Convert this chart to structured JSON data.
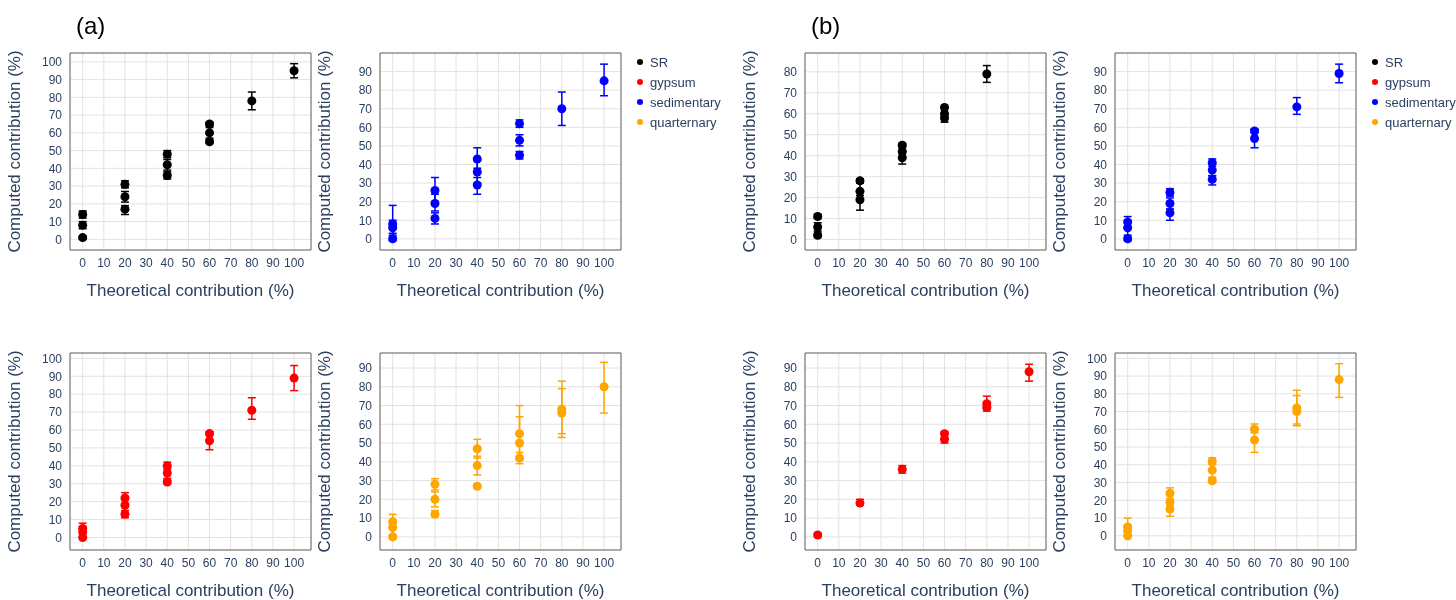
{
  "chart_data": [
    {
      "type": "scatter",
      "annotations": [
        "(a)"
      ],
      "xlabel": "Theoretical contribution (%)",
      "ylabel": "Computed contribution (%)",
      "xlim": [
        -6,
        108
      ],
      "xticks": [
        0,
        10,
        20,
        30,
        40,
        50,
        60,
        70,
        80,
        90,
        100
      ],
      "ylim": [
        -6,
        105
      ],
      "yticks": [
        0,
        10,
        20,
        30,
        40,
        50,
        60,
        70,
        80,
        90,
        100
      ],
      "grid": true,
      "marker": "circle",
      "legend": "right",
      "series": [
        {
          "name": "SR",
          "color": "#000000",
          "x": [
            0,
            0,
            0,
            20,
            20,
            20,
            40,
            40,
            40,
            60,
            60,
            60,
            80,
            100
          ],
          "values": [
            14,
            8,
            1,
            31,
            24,
            17,
            48,
            42,
            36,
            65,
            60,
            55,
            78,
            95
          ],
          "errors": [
            [
              12,
              16
            ],
            [
              6,
              10
            ],
            [
              0,
              2
            ],
            [
              29,
              33
            ],
            [
              21,
              27
            ],
            [
              14,
              19
            ],
            [
              46,
              50
            ],
            [
              39,
              45
            ],
            [
              34,
              38
            ],
            [
              64,
              66
            ],
            [
              57,
              63
            ],
            [
              54,
              56
            ],
            [
              73,
              83
            ],
            [
              91,
              99
            ]
          ]
        }
      ]
    },
    {
      "type": "scatter",
      "xlabel": "Theoretical contribution (%)",
      "ylabel": "Computed contribution (%)",
      "xlim": [
        -6,
        108
      ],
      "xticks": [
        0,
        10,
        20,
        30,
        40,
        50,
        60,
        70,
        80,
        90,
        100
      ],
      "ylim": [
        -6,
        100
      ],
      "yticks": [
        0,
        10,
        20,
        30,
        40,
        50,
        60,
        70,
        80,
        90
      ],
      "grid": true,
      "marker": "circle",
      "legend": "right",
      "series": [
        {
          "name": "sedimentary",
          "color": "#0000ff",
          "x": [
            0,
            0,
            0,
            20,
            20,
            20,
            40,
            40,
            40,
            60,
            60,
            60,
            80,
            100
          ],
          "values": [
            8,
            6,
            0,
            26,
            19,
            11,
            43,
            36,
            29,
            62,
            53,
            45,
            70,
            85
          ],
          "errors": [
            [
              3,
              18
            ],
            [
              2,
              10
            ],
            [
              -1,
              1
            ],
            [
              20,
              33
            ],
            [
              15,
              24
            ],
            [
              8,
              14
            ],
            [
              38,
              49
            ],
            [
              30,
              42
            ],
            [
              24,
              33
            ],
            [
              60,
              64
            ],
            [
              50,
              56
            ],
            [
              43,
              47
            ],
            [
              61,
              79
            ],
            [
              77,
              94
            ]
          ]
        }
      ]
    },
    {
      "type": "scatter",
      "annotations": [
        "(b)"
      ],
      "xlabel": "Theoretical contribution (%)",
      "ylabel": "Computed contribution (%)",
      "xlim": [
        -6,
        108
      ],
      "xticks": [
        0,
        10,
        20,
        30,
        40,
        50,
        60,
        70,
        80,
        90,
        100
      ],
      "ylim": [
        -5,
        89
      ],
      "yticks": [
        0,
        10,
        20,
        30,
        40,
        50,
        60,
        70,
        80
      ],
      "grid": true,
      "marker": "circle",
      "legend": "right",
      "series": [
        {
          "name": "SR",
          "color": "#000000",
          "x": [
            0,
            0,
            0,
            20,
            20,
            20,
            40,
            40,
            40,
            60,
            60,
            60,
            80
          ],
          "values": [
            11,
            6,
            2,
            28,
            23,
            19,
            45,
            42,
            39,
            63,
            60,
            58,
            79
          ],
          "errors": [
            [
              10,
              12
            ],
            [
              4,
              8
            ],
            [
              1,
              3
            ],
            [
              27,
              29
            ],
            [
              19,
              27
            ],
            [
              14,
              21
            ],
            [
              44,
              46
            ],
            [
              39,
              45
            ],
            [
              36,
              41
            ],
            null,
            [
              56,
              63
            ],
            null,
            [
              75,
              83
            ]
          ]
        }
      ]
    },
    {
      "type": "scatter",
      "xlabel": "Theoretical contribution (%)",
      "ylabel": "Computed contribution (%)",
      "xlim": [
        -6,
        108
      ],
      "xticks": [
        0,
        10,
        20,
        30,
        40,
        50,
        60,
        70,
        80,
        90,
        100
      ],
      "ylim": [
        -6,
        100
      ],
      "yticks": [
        0,
        10,
        20,
        30,
        40,
        50,
        60,
        70,
        80,
        90
      ],
      "grid": true,
      "marker": "circle",
      "legend": "right",
      "series": [
        {
          "name": "sedimentary",
          "color": "#0000ff",
          "x": [
            0,
            0,
            0,
            20,
            20,
            20,
            40,
            40,
            40,
            60,
            60,
            80,
            100
          ],
          "values": [
            9,
            6,
            0,
            25,
            19,
            14,
            41,
            37,
            32,
            58,
            54,
            71,
            89
          ],
          "errors": [
            [
              6,
              12
            ],
            [
              2,
              10
            ],
            [
              -1,
              1
            ],
            [
              23,
              27
            ],
            [
              16,
              22
            ],
            [
              10,
              16
            ],
            [
              39,
              43
            ],
            [
              34,
              40
            ],
            [
              29,
              34
            ],
            [
              57,
              59
            ],
            [
              49,
              59
            ],
            [
              67,
              76
            ],
            [
              84,
              94
            ]
          ]
        }
      ]
    },
    {
      "type": "scatter",
      "xlabel": "Theoretical contribution (%)",
      "ylabel": "Computed contribution (%)",
      "xlim": [
        -6,
        108
      ],
      "xticks": [
        0,
        10,
        20,
        30,
        40,
        50,
        60,
        70,
        80,
        90,
        100
      ],
      "ylim": [
        -7,
        103
      ],
      "yticks": [
        0,
        10,
        20,
        30,
        40,
        50,
        60,
        70,
        80,
        90,
        100
      ],
      "grid": true,
      "marker": "circle",
      "legend": "right",
      "series": [
        {
          "name": "gypsum",
          "color": "#ff0000",
          "x": [
            0,
            0,
            0,
            20,
            20,
            20,
            40,
            40,
            40,
            60,
            60,
            80,
            100
          ],
          "values": [
            5,
            3,
            0,
            22,
            18,
            13,
            40,
            36,
            31,
            58,
            54,
            71,
            89
          ],
          "errors": [
            [
              5,
              8
            ],
            [
              0,
              6
            ],
            null,
            [
              19,
              25
            ],
            [
              15,
              21
            ],
            [
              11,
              15
            ],
            [
              38,
              42
            ],
            [
              33,
              39
            ],
            [
              30,
              32
            ],
            [
              57,
              59
            ],
            [
              49,
              59
            ],
            [
              66,
              78
            ],
            [
              82,
              96
            ]
          ]
        }
      ]
    },
    {
      "type": "scatter",
      "xlabel": "Theoretical contribution (%)",
      "ylabel": "Computed contribution (%)",
      "xlim": [
        -6,
        108
      ],
      "xticks": [
        0,
        10,
        20,
        30,
        40,
        50,
        60,
        70,
        80,
        90,
        100
      ],
      "ylim": [
        -7,
        98
      ],
      "yticks": [
        0,
        10,
        20,
        30,
        40,
        50,
        60,
        70,
        80,
        90
      ],
      "grid": true,
      "marker": "circle",
      "legend": "right",
      "series": [
        {
          "name": "quarternary",
          "color": "#ffa500",
          "x": [
            0,
            0,
            0,
            20,
            20,
            20,
            40,
            40,
            40,
            60,
            60,
            60,
            80,
            80,
            100
          ],
          "values": [
            8,
            5,
            0,
            28,
            20,
            12,
            47,
            38,
            27,
            55,
            50,
            42,
            68,
            66,
            80
          ],
          "errors": [
            [
              5,
              12
            ],
            [
              1,
              9
            ],
            [
              -1,
              1
            ],
            [
              25,
              31
            ],
            [
              16,
              24
            ],
            [
              11,
              14
            ],
            [
              42,
              52
            ],
            [
              33,
              43
            ],
            [
              26,
              28
            ],
            [
              41,
              70
            ],
            [
              42,
              64
            ],
            [
              39,
              45
            ],
            [
              55,
              83
            ],
            [
              53,
              79
            ],
            [
              66,
              93
            ]
          ]
        }
      ]
    },
    {
      "type": "scatter",
      "xlabel": "Theoretical contribution (%)",
      "ylabel": "Computed contribution (%)",
      "xlim": [
        -6,
        108
      ],
      "xticks": [
        0,
        10,
        20,
        30,
        40,
        50,
        60,
        70,
        80,
        90,
        100
      ],
      "ylim": [
        -7,
        98
      ],
      "yticks": [
        0,
        10,
        20,
        30,
        40,
        50,
        60,
        70,
        80,
        90
      ],
      "grid": true,
      "marker": "circle",
      "legend": "right",
      "series": [
        {
          "name": "gypsum",
          "color": "#ff0000",
          "x": [
            0,
            20,
            40,
            60,
            60,
            80,
            80,
            100
          ],
          "values": [
            1,
            18,
            36,
            55,
            52,
            71,
            69,
            88
          ],
          "errors": [
            [
              0,
              2
            ],
            [
              17,
              20
            ],
            [
              34,
              38
            ],
            [
              52,
              56
            ],
            [
              50,
              52
            ],
            [
              67,
              75
            ],
            [
              68,
              72
            ],
            [
              83,
              92
            ]
          ]
        }
      ]
    },
    {
      "type": "scatter",
      "xlabel": "Theoretical contribution (%)",
      "ylabel": "Computed contribution (%)",
      "xlim": [
        -6,
        108
      ],
      "xticks": [
        0,
        10,
        20,
        30,
        40,
        50,
        60,
        70,
        80,
        90,
        100
      ],
      "ylim": [
        -8,
        103
      ],
      "yticks": [
        0,
        10,
        20,
        30,
        40,
        50,
        60,
        70,
        80,
        90,
        100
      ],
      "grid": true,
      "marker": "circle",
      "legend": "right",
      "series": [
        {
          "name": "quarternary",
          "color": "#ffa500",
          "x": [
            0,
            0,
            0,
            20,
            20,
            20,
            40,
            40,
            40,
            60,
            60,
            80,
            80,
            100
          ],
          "values": [
            5,
            3,
            0,
            24,
            19,
            15,
            42,
            37,
            31,
            60,
            54,
            72,
            70,
            88
          ],
          "errors": [
            [
              5,
              10
            ],
            [
              0,
              6
            ],
            null,
            [
              21,
              27
            ],
            [
              15,
              23
            ],
            [
              11,
              17
            ],
            [
              40,
              44
            ],
            [
              33,
              41
            ],
            [
              30,
              32
            ],
            [
              58,
              63
            ],
            [
              47,
              61
            ],
            [
              62,
              82
            ],
            [
              63,
              79
            ],
            [
              78,
              97
            ]
          ]
        }
      ]
    }
  ]
}
